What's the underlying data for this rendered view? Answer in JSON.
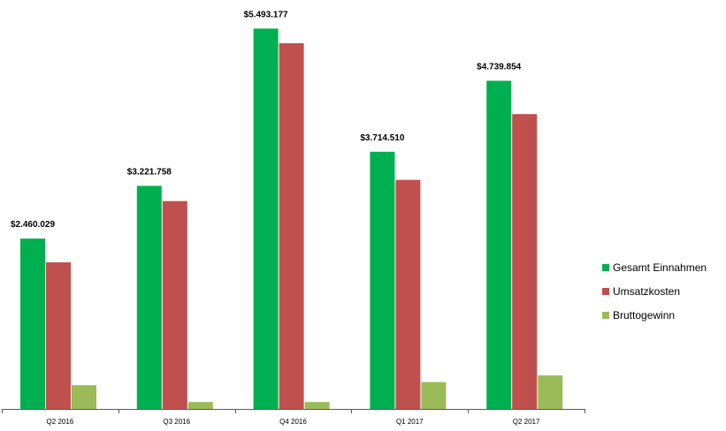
{
  "colors": {
    "einnahmen": "#00b050",
    "umsatzkosten": "#c0504d",
    "bruttogewinn": "#9bbb59",
    "axis": "#595959"
  },
  "chart_data": {
    "type": "bar",
    "title": "",
    "xlabel": "",
    "ylabel": "",
    "ylim": [
      0,
      5600000
    ],
    "grid": false,
    "legend_position": "right",
    "categories": [
      "Q2 2016",
      "Q3 2016",
      "Q4 2016",
      "Q1 2017",
      "Q2 2017"
    ],
    "series": [
      {
        "name": "Gesamt Einnahmen",
        "color_key": "einnahmen",
        "values": [
          2460029,
          3221758,
          5493177,
          3714510,
          4739854
        ],
        "labels": [
          "$2.460.029",
          "$3.221.758",
          "$5.493.177",
          "$3.714.510",
          "$4.739.854"
        ]
      },
      {
        "name": "Umsatzkosten",
        "color_key": "umsatzkosten",
        "values": [
          2117000,
          3002000,
          5282000,
          3308000,
          4258000
        ]
      },
      {
        "name": "Bruttogewinn",
        "color_key": "bruttogewinn",
        "values": [
          343000,
          100000,
          100000,
          388000,
          484000
        ]
      }
    ]
  }
}
